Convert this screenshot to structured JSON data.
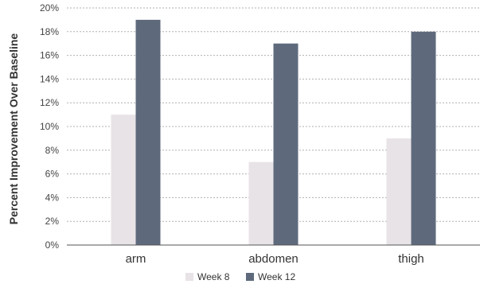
{
  "chart_data": {
    "type": "bar",
    "categories": [
      "arm",
      "abdomen",
      "thigh"
    ],
    "series": [
      {
        "name": "Week 8",
        "values": [
          11,
          7,
          9
        ],
        "color": "#e8e3e7"
      },
      {
        "name": "Week 12",
        "values": [
          19,
          17,
          18
        ],
        "color": "#5e6a7c"
      }
    ],
    "ylabel": "Percent Improvement Over Baseline",
    "ylim": [
      0,
      20
    ],
    "y_ticks": [
      0,
      2,
      4,
      6,
      8,
      10,
      12,
      14,
      16,
      18,
      20
    ],
    "y_tick_labels": [
      "0%",
      "2%",
      "4%",
      "6%",
      "8%",
      "10%",
      "12%",
      "14%",
      "16%",
      "18%",
      "20%"
    ],
    "grid": true,
    "legend": "bottom-center"
  }
}
